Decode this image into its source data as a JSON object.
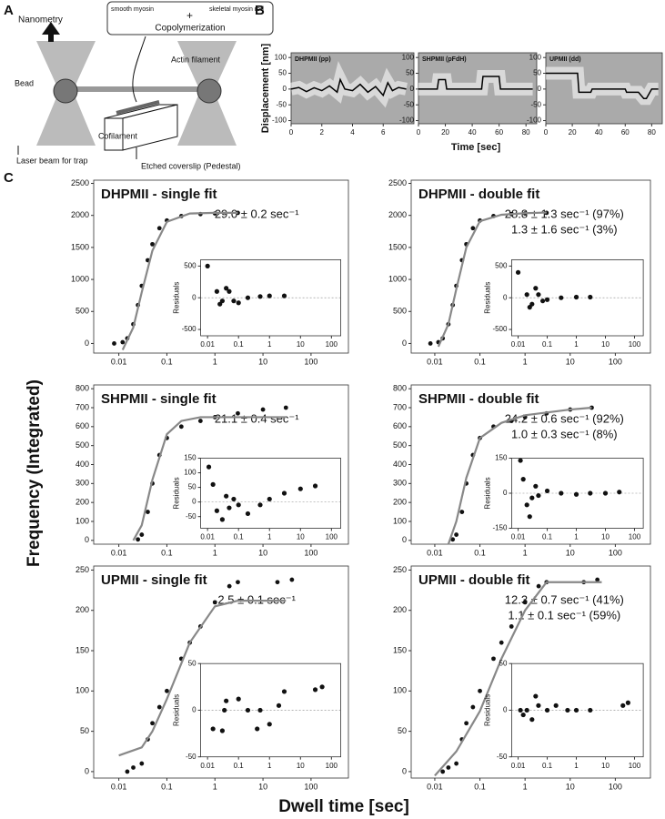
{
  "panel_a": {
    "label": "A",
    "nanometry": "Nanometry",
    "smooth_myosin": "smooth myosin",
    "plus": "+",
    "skeletal_rod": "skeletal myosin rod",
    "copolymerization": "Copolymerization",
    "actin": "Actin filament",
    "bead": "Bead",
    "cofilament": "Cofilament",
    "laser": "Laser beam for trap",
    "coverslip": "Etched coverslip (Pedestal)"
  },
  "panel_b": {
    "label": "B",
    "y_label": "Displacement [nm]",
    "x_label": "Time [sec]",
    "charts": [
      {
        "type": "line",
        "title": "DHPMII (pp)",
        "color": "#000",
        "x": [
          0,
          0.5,
          1,
          1.5,
          2,
          2.5,
          3,
          3.2,
          3.5,
          4,
          4.5,
          5,
          5.5,
          6,
          6.3,
          6.6,
          7,
          7.5
        ],
        "values": [
          0,
          5,
          -8,
          4,
          -5,
          10,
          -10,
          30,
          0,
          -5,
          15,
          -10,
          8,
          -20,
          20,
          -5,
          5,
          0
        ],
        "xlim": [
          0,
          8
        ],
        "xticks": [
          0,
          2,
          4,
          6
        ],
        "ylim": [
          -110,
          115
        ],
        "yticks": [
          -100,
          -50,
          0,
          50,
          100
        ]
      },
      {
        "type": "line",
        "title": "SHPMII (pFdH)",
        "color": "#000",
        "x": [
          0,
          14,
          15,
          20,
          21,
          47,
          48,
          60,
          61,
          85
        ],
        "values": [
          0,
          0,
          30,
          30,
          0,
          0,
          40,
          40,
          0,
          0
        ],
        "xlim": [
          0,
          88
        ],
        "xticks": [
          0,
          20,
          40,
          60,
          80
        ],
        "ylim": [
          -110,
          115
        ],
        "yticks": [
          -100,
          -50,
          0,
          50,
          100
        ]
      },
      {
        "type": "line",
        "title": "UPMII (dd)",
        "color": "#000",
        "x": [
          0,
          24,
          25,
          34,
          35,
          60,
          61,
          70,
          74,
          76,
          80,
          81,
          85
        ],
        "values": [
          50,
          50,
          -10,
          -10,
          0,
          0,
          -10,
          -10,
          -30,
          -30,
          0,
          0,
          0
        ],
        "xlim": [
          0,
          88
        ],
        "xticks": [
          0,
          20,
          40,
          60,
          80
        ],
        "ylim": [
          -110,
          115
        ],
        "yticks": [
          -100,
          -50,
          0,
          50,
          100
        ]
      }
    ]
  },
  "panel_c": {
    "label": "C",
    "y_label": "Frequency (Integrated)",
    "x_label": "Dwell time [sec]",
    "charts": [
      {
        "type": "scatter",
        "title": "DHPMII - single fit",
        "annotations": [
          "29.0 ± 0.2 sec⁻¹"
        ],
        "color": "#111",
        "x": [
          0.008,
          0.012,
          0.015,
          0.02,
          0.025,
          0.03,
          0.04,
          0.05,
          0.07,
          0.1,
          0.2,
          0.5,
          1,
          3
        ],
        "values": [
          0,
          20,
          80,
          300,
          600,
          900,
          1300,
          1550,
          1800,
          1920,
          1990,
          2020,
          2030,
          2040
        ],
        "fit": {
          "color": "#888",
          "x": [
            0.012,
            0.02,
            0.03,
            0.05,
            0.1,
            0.3,
            1,
            3
          ],
          "values": [
            -100,
            250,
            800,
            1450,
            1900,
            2030,
            2040,
            2040
          ]
        },
        "xlim": [
          0.003,
          600
        ],
        "xticks": [
          0.01,
          0.1,
          1,
          10,
          100
        ],
        "ylim": [
          -150,
          2550
        ],
        "yticks": [
          0,
          500,
          1000,
          1500,
          2000,
          2500
        ],
        "inset": {
          "y_label": "Residuals",
          "x": [
            0.01,
            0.02,
            0.025,
            0.03,
            0.04,
            0.05,
            0.07,
            0.1,
            0.2,
            0.5,
            1,
            3
          ],
          "values": [
            500,
            100,
            -100,
            -50,
            150,
            100,
            -50,
            -80,
            0,
            20,
            30,
            30
          ],
          "xlim": [
            0.006,
            200
          ],
          "xticks": [
            0.01,
            0.1,
            1,
            10,
            100
          ],
          "ylim": [
            -600,
            600
          ],
          "yticks": [
            -500,
            0,
            500
          ]
        }
      },
      {
        "type": "scatter",
        "title": "DHPMII - double fit",
        "annotations": [
          "28.8 ± 1.3 sec⁻¹ (97%)",
          "1.3 ± 1.6 sec⁻¹ (3%)"
        ],
        "color": "#111",
        "x": [
          0.008,
          0.012,
          0.015,
          0.02,
          0.025,
          0.03,
          0.04,
          0.05,
          0.07,
          0.1,
          0.2,
          0.5,
          1,
          3
        ],
        "values": [
          0,
          20,
          80,
          300,
          600,
          900,
          1300,
          1550,
          1800,
          1920,
          1990,
          2020,
          2030,
          2040
        ],
        "fit": {
          "color": "#888",
          "x": [
            0.012,
            0.02,
            0.03,
            0.05,
            0.1,
            0.3,
            1,
            3
          ],
          "values": [
            -50,
            300,
            850,
            1500,
            1910,
            2010,
            2035,
            2045
          ]
        },
        "xlim": [
          0.003,
          600
        ],
        "xticks": [
          0.01,
          0.1,
          1,
          10,
          100
        ],
        "ylim": [
          -150,
          2550
        ],
        "yticks": [
          0,
          500,
          1000,
          1500,
          2000,
          2500
        ],
        "inset": {
          "y_label": "Residuals",
          "x": [
            0.01,
            0.02,
            0.025,
            0.03,
            0.04,
            0.05,
            0.07,
            0.1,
            0.3,
            1,
            3
          ],
          "values": [
            400,
            50,
            -150,
            -100,
            150,
            50,
            -50,
            -30,
            0,
            10,
            10
          ],
          "xlim": [
            0.006,
            200
          ],
          "xticks": [
            0.01,
            0.1,
            1,
            10,
            100
          ],
          "ylim": [
            -600,
            600
          ],
          "yticks": [
            -500,
            0,
            500
          ]
        }
      },
      {
        "type": "scatter",
        "title": "SHPMII - single fit",
        "annotations": [
          "21.1 ± 0.4 sec⁻¹"
        ],
        "color": "#111",
        "x": [
          0.025,
          0.03,
          0.04,
          0.05,
          0.07,
          0.1,
          0.2,
          0.5,
          1,
          3,
          10,
          30
        ],
        "values": [
          5,
          30,
          150,
          300,
          450,
          540,
          600,
          630,
          650,
          670,
          690,
          700
        ],
        "fit": {
          "color": "#888",
          "x": [
            0.02,
            0.03,
            0.05,
            0.1,
            0.2,
            0.5,
            1,
            10,
            30
          ],
          "values": [
            0,
            80,
            320,
            560,
            630,
            650,
            650,
            650,
            650
          ]
        },
        "xlim": [
          0.003,
          600
        ],
        "xticks": [
          0.01,
          0.1,
          1,
          10,
          100
        ],
        "ylim": [
          -20,
          820
        ],
        "yticks": [
          0,
          100,
          200,
          300,
          400,
          500,
          600,
          700,
          800
        ],
        "inset": {
          "y_label": "Residuals",
          "x": [
            0.011,
            0.015,
            0.02,
            0.03,
            0.04,
            0.05,
            0.07,
            0.1,
            0.2,
            0.5,
            1,
            3,
            10,
            30
          ],
          "values": [
            120,
            60,
            -30,
            -60,
            20,
            -20,
            10,
            -10,
            -40,
            -10,
            10,
            30,
            45,
            55
          ],
          "xlim": [
            0.006,
            200
          ],
          "xticks": [
            0.01,
            0.1,
            1,
            10,
            100
          ],
          "ylim": [
            -90,
            150
          ],
          "yticks": [
            -50,
            0,
            50,
            100,
            150
          ]
        }
      },
      {
        "type": "scatter",
        "title": "SHPMII - double fit",
        "annotations": [
          "24.2 ± 0.6 sec⁻¹ (92%)",
          "1.0 ± 0.3 sec⁻¹ (8%)"
        ],
        "color": "#111",
        "x": [
          0.025,
          0.03,
          0.04,
          0.05,
          0.07,
          0.1,
          0.2,
          0.5,
          1,
          3,
          10,
          30
        ],
        "values": [
          5,
          30,
          150,
          300,
          450,
          540,
          600,
          630,
          650,
          670,
          690,
          700
        ],
        "fit": {
          "color": "#888",
          "x": [
            0.02,
            0.03,
            0.05,
            0.1,
            0.3,
            1,
            10,
            30
          ],
          "values": [
            -20,
            100,
            330,
            540,
            620,
            660,
            690,
            700
          ]
        },
        "xlim": [
          0.003,
          600
        ],
        "xticks": [
          0.01,
          0.1,
          1,
          10,
          100
        ],
        "ylim": [
          -20,
          820
        ],
        "yticks": [
          0,
          100,
          200,
          300,
          400,
          500,
          600,
          700,
          800
        ],
        "inset": {
          "y_label": "Residuals",
          "x": [
            0.012,
            0.015,
            0.02,
            0.025,
            0.03,
            0.04,
            0.05,
            0.1,
            0.3,
            1,
            3,
            10,
            30
          ],
          "values": [
            140,
            60,
            -50,
            -100,
            -20,
            30,
            -10,
            10,
            0,
            -5,
            0,
            0,
            5
          ],
          "xlim": [
            0.006,
            200
          ],
          "xticks": [
            0.01,
            0.1,
            1,
            10,
            100
          ],
          "ylim": [
            -150,
            150
          ],
          "yticks": [
            -150,
            0,
            150
          ]
        }
      },
      {
        "type": "scatter",
        "title": "UPMII - single fit",
        "annotations": [
          "2.5 ± 0.1 sec⁻¹"
        ],
        "color": "#111",
        "x": [
          0.015,
          0.02,
          0.03,
          0.04,
          0.05,
          0.07,
          0.1,
          0.2,
          0.3,
          0.5,
          1,
          2,
          3,
          20,
          40
        ],
        "values": [
          0,
          5,
          10,
          40,
          60,
          80,
          100,
          140,
          160,
          180,
          210,
          230,
          235,
          235,
          238
        ],
        "fit": {
          "color": "#888",
          "x": [
            0.01,
            0.03,
            0.05,
            0.1,
            0.3,
            1,
            3,
            30
          ],
          "values": [
            20,
            30,
            50,
            90,
            160,
            205,
            212,
            212
          ]
        },
        "xlim": [
          0.003,
          600
        ],
        "xticks": [
          0.01,
          0.1,
          1,
          10,
          100
        ],
        "ylim": [
          -8,
          255
        ],
        "yticks": [
          0,
          50,
          100,
          150,
          200,
          250
        ],
        "inset": {
          "y_label": "Residuals",
          "x": [
            0.015,
            0.03,
            0.035,
            0.04,
            0.1,
            0.2,
            0.4,
            0.5,
            1,
            2,
            3,
            30,
            50
          ],
          "values": [
            -20,
            -22,
            0,
            10,
            12,
            0,
            -20,
            0,
            -15,
            5,
            20,
            22,
            25
          ],
          "xlim": [
            0.006,
            200
          ],
          "xticks": [
            0.01,
            0.1,
            1,
            10,
            100
          ],
          "ylim": [
            -50,
            50
          ],
          "yticks": [
            -50,
            0,
            50
          ]
        }
      },
      {
        "type": "scatter",
        "title": "UPMII - double fit",
        "annotations": [
          "12.3 ± 0.7 sec⁻¹ (41%)",
          "1.1 ± 0.1 sec⁻¹ (59%)"
        ],
        "color": "#111",
        "x": [
          0.015,
          0.02,
          0.03,
          0.04,
          0.05,
          0.07,
          0.1,
          0.2,
          0.3,
          0.5,
          1,
          2,
          3,
          20,
          40
        ],
        "values": [
          0,
          5,
          10,
          40,
          60,
          80,
          100,
          140,
          160,
          180,
          210,
          230,
          235,
          235,
          238
        ],
        "fit": {
          "color": "#888",
          "x": [
            0.01,
            0.03,
            0.1,
            0.3,
            1,
            3,
            50
          ],
          "values": [
            -5,
            25,
            75,
            140,
            200,
            235,
            235
          ]
        },
        "xlim": [
          0.003,
          600
        ],
        "xticks": [
          0.01,
          0.1,
          1,
          10,
          100
        ],
        "ylim": [
          -8,
          255
        ],
        "yticks": [
          0,
          50,
          100,
          150,
          200,
          250
        ],
        "inset": {
          "y_label": "Residuals",
          "x": [
            0.012,
            0.015,
            0.02,
            0.03,
            0.04,
            0.05,
            0.1,
            0.2,
            0.5,
            1,
            3,
            40,
            60
          ],
          "values": [
            0,
            -5,
            0,
            -10,
            15,
            5,
            0,
            5,
            0,
            0,
            0,
            5,
            8
          ],
          "xlim": [
            0.006,
            200
          ],
          "xticks": [
            0.01,
            0.1,
            1,
            10,
            100
          ],
          "ylim": [
            -50,
            50
          ],
          "yticks": [
            -50,
            0,
            50
          ]
        }
      }
    ]
  }
}
